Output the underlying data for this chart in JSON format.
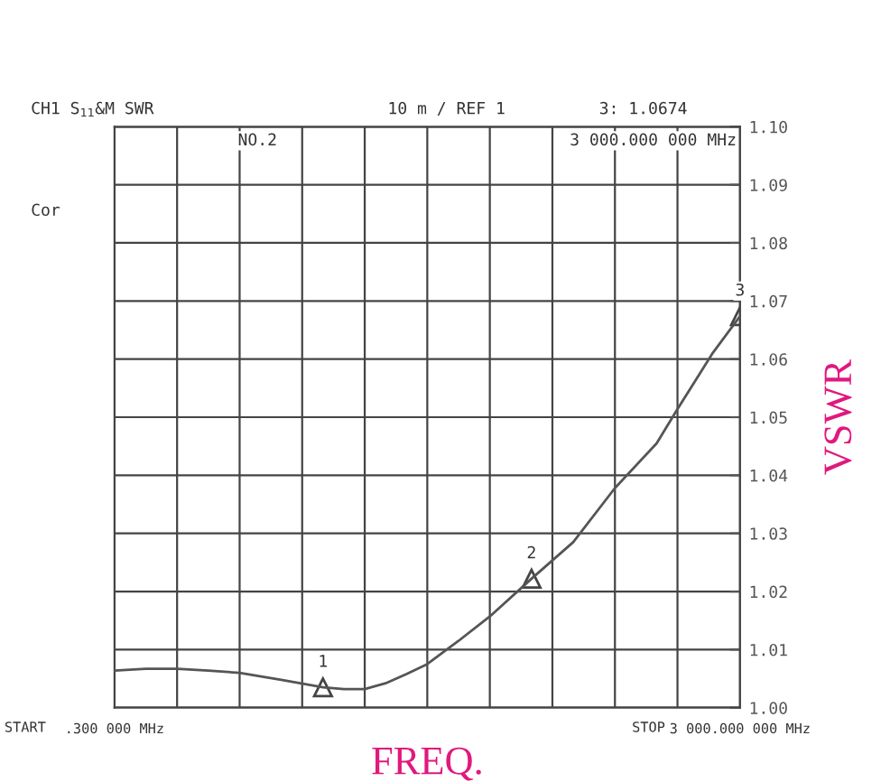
{
  "chart_data": {
    "type": "line",
    "xlabel": "FREQ.",
    "ylabel": "VSWR",
    "x": [
      0.3,
      150,
      300,
      450,
      600,
      800,
      1000,
      1100,
      1200,
      1300,
      1400,
      1500,
      1650,
      1800,
      2000,
      2200,
      2400,
      2600,
      2700,
      2870,
      3000
    ],
    "series": [
      {
        "color": "#555555",
        "values": [
          1.0064,
          1.0067,
          1.0067,
          1.0064,
          1.006,
          1.0048,
          1.0035,
          1.0032,
          1.0032,
          1.0042,
          1.0058,
          1.0075,
          1.0115,
          1.0157,
          1.0222,
          1.0285,
          1.0378,
          1.0455,
          1.0514,
          1.0611,
          1.0674
        ]
      }
    ],
    "xlim": [
      0.3,
      3000
    ],
    "xticks": [
      {
        "value": 0.3,
        "label": ".300 000 MHz"
      },
      {
        "value": 300.27,
        "label": null
      },
      {
        "value": 600.24,
        "label": null
      },
      {
        "value": 900.21,
        "label": null
      },
      {
        "value": 1200.18,
        "label": null
      },
      {
        "value": 1500.15,
        "label": null
      },
      {
        "value": 1800.12,
        "label": null
      },
      {
        "value": 2100.09,
        "label": null
      },
      {
        "value": 2400.06,
        "label": null
      },
      {
        "value": 2700.03,
        "label": null
      },
      {
        "value": 3000,
        "label": "3 000.000 000 MHz"
      }
    ],
    "ylim": [
      1.0,
      1.1
    ],
    "yticks": [
      {
        "value": 1.0,
        "label": "1.00"
      },
      {
        "value": 1.01,
        "label": "1.01"
      },
      {
        "value": 1.02,
        "label": "1.02"
      },
      {
        "value": 1.03,
        "label": "1.03"
      },
      {
        "value": 1.04,
        "label": "1.04"
      },
      {
        "value": 1.05,
        "label": "1.05"
      },
      {
        "value": 1.06,
        "label": "1.06"
      },
      {
        "value": 1.07,
        "label": "1.07"
      },
      {
        "value": 1.08,
        "label": "1.08"
      },
      {
        "value": 1.09,
        "label": "1.09"
      },
      {
        "value": 1.1,
        "label": "1.10"
      }
    ],
    "grid": true,
    "legend": false,
    "marker": "none",
    "line_style": "solid",
    "annotations": [
      "CH1 S$_{11}$&M SWR",
      "10 m / REF 1",
      "3: 1.0674",
      "NO.2",
      "3 000.000 000 MHz",
      "Cor",
      "START",
      "STOP",
      {
        "text": "1",
        "x": 1000,
        "y": 1.0035
      },
      {
        "text": "2",
        "x": 2000,
        "y": 1.0222
      },
      {
        "text": "3",
        "x": 3000,
        "y": 1.0674
      }
    ]
  }
}
